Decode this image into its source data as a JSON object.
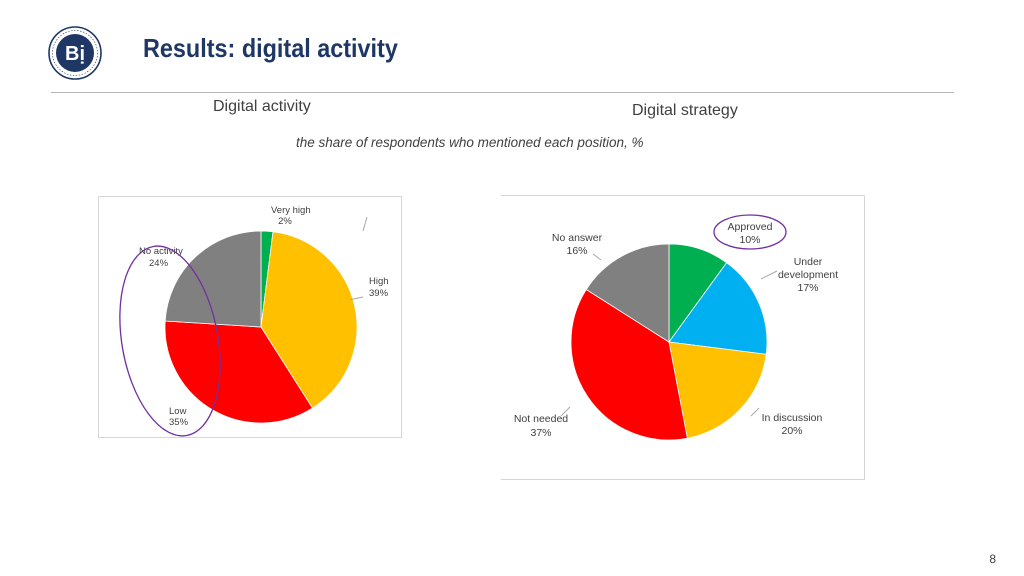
{
  "header": {
    "title": "Results: digital activity",
    "logo_icon": "hse-university-seal"
  },
  "headings": {
    "left": "Digital activity",
    "right": "Digital strategy",
    "subtitle": "the share of respondents who mentioned each position, %"
  },
  "chart_data": [
    {
      "type": "pie",
      "title": "Digital activity",
      "categories": [
        "Very high",
        "High",
        "Low",
        "No activity"
      ],
      "values": [
        2,
        39,
        35,
        24
      ],
      "value_labels": [
        "2%",
        "39%",
        "35%",
        "24%"
      ],
      "colors": [
        "#00b050",
        "#ffc000",
        "#ff0000",
        "#808080"
      ],
      "highlighted": [
        "Low",
        "No activity"
      ]
    },
    {
      "type": "pie",
      "title": "Digital strategy",
      "categories": [
        "Approved",
        "Under development",
        "In discussion",
        "Not needed",
        "No answer"
      ],
      "values": [
        10,
        17,
        20,
        37,
        16
      ],
      "value_labels": [
        "10%",
        "17%",
        "20%",
        "37%",
        "16%"
      ],
      "colors": [
        "#00b050",
        "#00b0f0",
        "#ffc000",
        "#ff0000",
        "#808080"
      ],
      "highlighted": [
        "Approved"
      ]
    }
  ],
  "page": {
    "number": "8"
  }
}
